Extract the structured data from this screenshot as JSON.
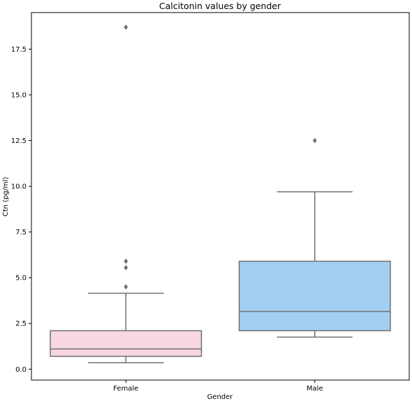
{
  "chart_data": {
    "type": "box",
    "title": "Calcitonin values by gender",
    "xlabel": "Gender",
    "ylabel": "Ctn (pg/ml)",
    "ylim": [
      -0.6,
      19.5
    ],
    "yticks": [
      0.0,
      2.5,
      5.0,
      7.5,
      10.0,
      12.5,
      15.0,
      17.5
    ],
    "ytick_labels": [
      "0.0",
      "2.5",
      "5.0",
      "7.5",
      "10.0",
      "12.5",
      "15.0",
      "17.5"
    ],
    "grid": false,
    "categories": [
      "Female",
      "Male"
    ],
    "boxes": [
      {
        "name": "Female",
        "color": "#f8d7e0",
        "whisker_low": 0.35,
        "q1": 0.7,
        "median": 1.1,
        "q3": 2.1,
        "whisker_high": 4.15,
        "outliers": [
          4.5,
          5.55,
          5.9,
          18.7
        ]
      },
      {
        "name": "Male",
        "color": "#a3cff2",
        "whisker_low": 1.75,
        "q1": 2.1,
        "median": 3.15,
        "q3": 5.9,
        "whisker_high": 9.7,
        "outliers": [
          12.5
        ]
      }
    ],
    "line_color": "#707070"
  }
}
